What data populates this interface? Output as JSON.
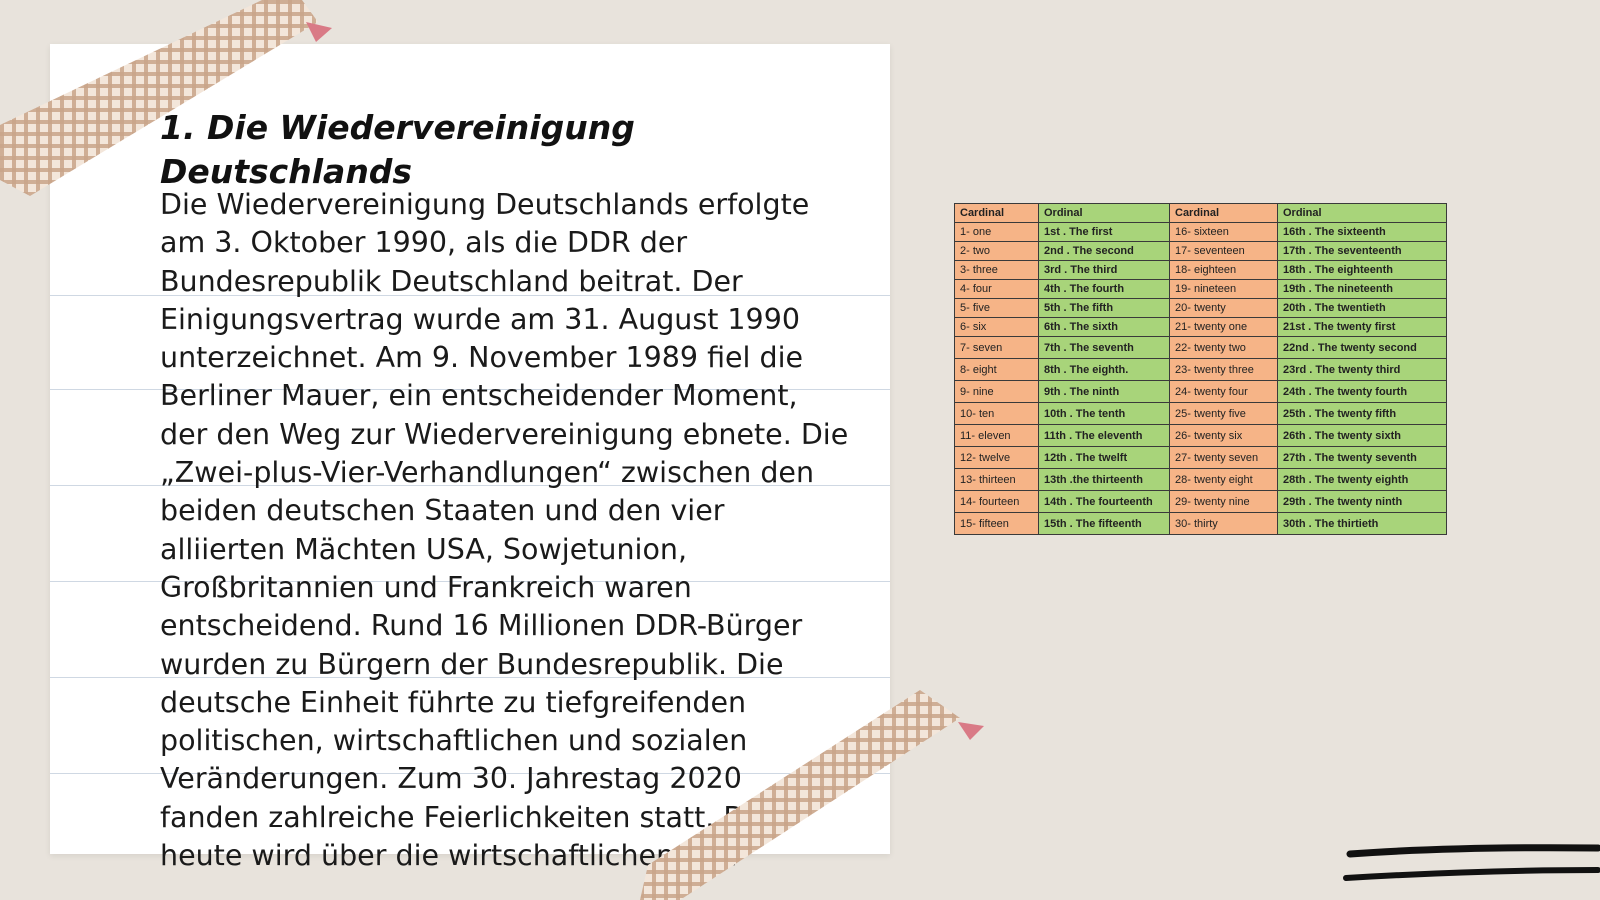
{
  "document": {
    "title": "1. Die Wiedervereinigung Deutschlands",
    "body": "Die Wiedervereinigung Deutschlands erfolgte am 3. Oktober 1990, als die DDR der Bundesrepublik Deutschland beitrat. Der Einigungsvertrag wurde am 31. August 1990 unterzeichnet. Am 9. November 1989 fiel die Berliner Mauer, ein entscheidender Moment, der den Weg zur Wiedervereinigung ebnete. Die „Zwei-plus-Vier-Verhandlungen“ zwischen den beiden deutschen Staaten und den vier alliierten Mächten USA, Sowjetunion, Großbritannien und Frankreich waren entscheidend. Rund 16 Millionen DDR-Bürger wurden zu Bürgern der Bundesrepublik. Die deutsche Einheit führte zu tiefgreifenden politischen, wirtschaftlichen und sozialen Veränderungen. Zum 30. Jahrestag 2020 fanden zahlreiche Feierlichkeiten statt. Bis heute wird über die wirtschaftlichen und"
  },
  "table": {
    "headers": [
      "Cardinal",
      "Ordinal",
      "Cardinal",
      "Ordinal"
    ],
    "rows": [
      [
        "1- one",
        "1st . The first",
        "16- sixteen",
        "16th . The sixteenth"
      ],
      [
        "2- two",
        "2nd . The second",
        "17- seventeen",
        "17th . The seventeenth"
      ],
      [
        "3- three",
        "3rd . The third",
        "18- eighteen",
        "18th . The eighteenth"
      ],
      [
        "4- four",
        "4th . The fourth",
        "19- nineteen",
        "19th . The nineteenth"
      ],
      [
        "5- five",
        "5th . The fifth",
        "20- twenty",
        "20th . The twentieth"
      ],
      [
        "6- six",
        "6th . The sixth",
        "21- twenty one",
        "21st . The twenty first"
      ],
      [
        "7- seven",
        "7th . The seventh",
        "22- twenty two",
        "22nd . The twenty second"
      ],
      [
        "8- eight",
        "8th . The eighth.",
        "23- twenty three",
        "23rd . The twenty third"
      ],
      [
        "9- nine",
        "9th . The ninth",
        "24- twenty four",
        "24th . The twenty fourth"
      ],
      [
        "10- ten",
        "10th . The tenth",
        "25- twenty five",
        "25th . The twenty fifth"
      ],
      [
        "11- eleven",
        "11th . The eleventh",
        "26- twenty six",
        "26th . The twenty sixth"
      ],
      [
        "12- twelve",
        "12th . The twelft",
        "27- twenty seven",
        "27th . The twenty seventh"
      ],
      [
        "13- thirteen",
        "13th .the thirteenth",
        "28- twenty eight",
        "28th . The twenty eighth"
      ],
      [
        "14- fourteen",
        "14th . The fourteenth",
        "29- twenty nine",
        "29th . The twenty ninth"
      ],
      [
        "15- fifteen",
        "15th . The fifteenth",
        "30- thirty",
        "30th . The thirtieth"
      ]
    ]
  },
  "colors": {
    "background": "#e8e3dc",
    "paper": "#ffffff",
    "cardinal_cell": "#f6b487",
    "ordinal_cell": "#a8d47a",
    "tape": "#c9a58a",
    "tape_tab": "#d97a86",
    "marker": "#111111"
  }
}
